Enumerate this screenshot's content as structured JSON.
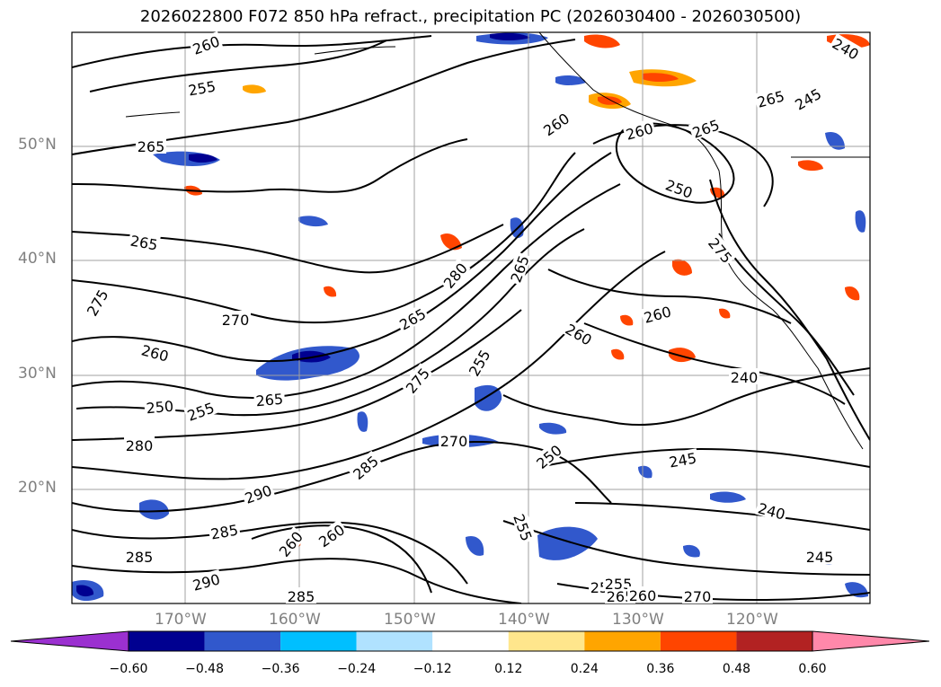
{
  "title": "2026022800 F072 850 hPa refract., precipitation PC (2026030400 - 2026030500)",
  "map": {
    "lat_labels": [
      "50°N",
      "40°N",
      "30°N",
      "20°N"
    ],
    "lon_labels": [
      "170°W",
      "160°W",
      "150°W",
      "140°W",
      "130°W",
      "120°W"
    ],
    "contour_labels": [
      "260",
      "255",
      "265",
      "265",
      "275",
      "270",
      "260",
      "250",
      "255",
      "265",
      "280",
      "290",
      "285",
      "285",
      "290",
      "285",
      "260",
      "260",
      "265",
      "280",
      "275",
      "255",
      "270",
      "260",
      "285",
      "265",
      "250",
      "260",
      "250",
      "260",
      "255",
      "260",
      "240",
      "245",
      "240",
      "245",
      "250",
      "265",
      "270",
      "265",
      "255",
      "260",
      "265",
      "275",
      "240",
      "245"
    ]
  },
  "colorbar": {
    "ticks": [
      "−0.60",
      "−0.48",
      "−0.36",
      "−0.24",
      "−0.12",
      "0.12",
      "0.24",
      "0.36",
      "0.48",
      "0.60"
    ],
    "colors": [
      "#9b30d0",
      "#000090",
      "#3158cc",
      "#00bfff",
      "#b0e2ff",
      "#ffffff",
      "#ffe68c",
      "#ffa500",
      "#ff4500",
      "#b22222",
      "#ff88aa"
    ]
  }
}
